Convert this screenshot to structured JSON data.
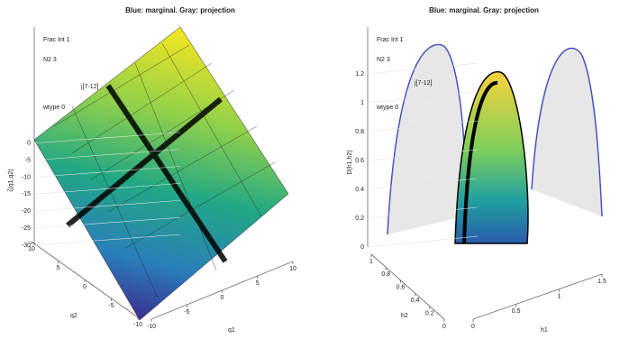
{
  "chart_data": [
    {
      "type": "surface",
      "title": "Blue: marginal. Gray: projection",
      "annotations": [
        "Frac Int 1",
        "N2 3",
        "j[7-12]",
        "wtype 0"
      ],
      "xlabel": "q1",
      "ylabel": "q2",
      "zlabel": "ζ(q1,q2)",
      "xlim": [
        -10,
        10
      ],
      "xticks": [
        -10,
        -5,
        0,
        5,
        10
      ],
      "ylim": [
        -10,
        10
      ],
      "yticks": [
        -10,
        -5,
        0,
        5,
        10
      ],
      "zlim": [
        -30,
        10
      ],
      "zticks": [
        -30,
        -25,
        -20,
        -15,
        -10,
        -5,
        0
      ]
    },
    {
      "type": "surface",
      "title": "Blue: marginal. Gray: projection",
      "annotations": [
        "Frac Int 1",
        "N2 3",
        "j[7-12]",
        "wtype 0"
      ],
      "xlabel": "h1",
      "ylabel": "h2",
      "zlabel": "D(h1,h2)",
      "xlim": [
        0,
        1.5
      ],
      "xticks": [
        0,
        0.5,
        1,
        1.5
      ],
      "ylim": [
        0,
        1
      ],
      "yticks": [
        0,
        0.2,
        0.4,
        0.6,
        0.8,
        1
      ],
      "zlim": [
        0,
        1.2
      ],
      "zticks": [
        0,
        0.2,
        0.4,
        0.6,
        0.8,
        1,
        1.2
      ]
    }
  ]
}
